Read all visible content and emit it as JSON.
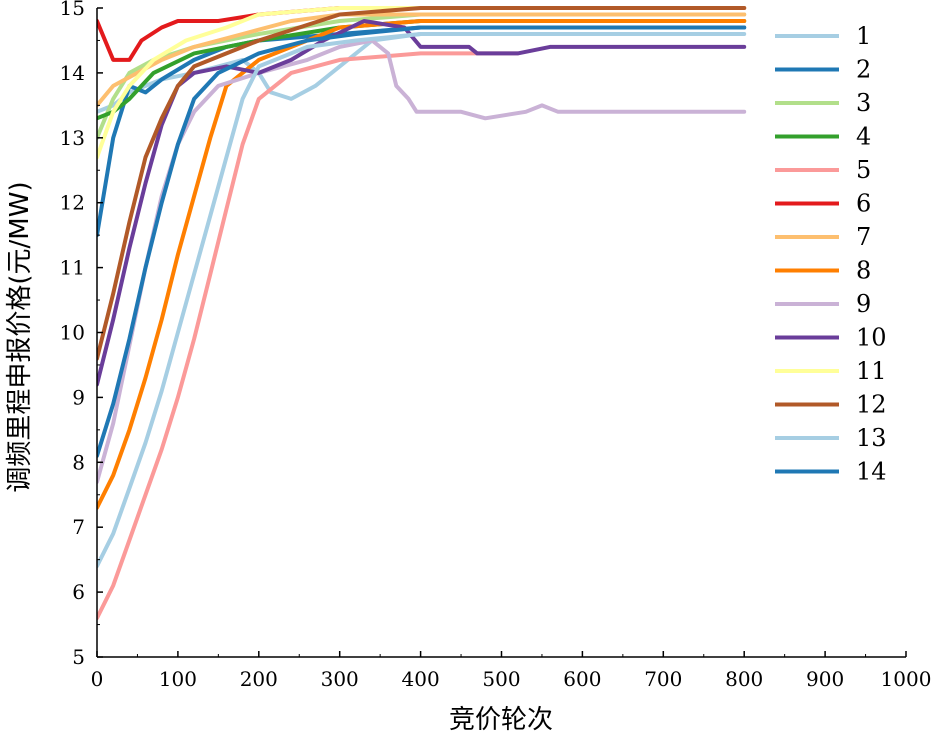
{
  "chart_data": {
    "type": "line",
    "title": "",
    "xlabel": "竞价轮次",
    "ylabel": "调频里程申报价格(元/MW)",
    "xlim": [
      0,
      1000
    ],
    "ylim": [
      5,
      15
    ],
    "xticks": [
      "0",
      "100",
      "200",
      "300",
      "400",
      "500",
      "600",
      "700",
      "800",
      "900",
      "1000"
    ],
    "yticks": [
      "5",
      "6",
      "7",
      "8",
      "9",
      "10",
      "11",
      "12",
      "13",
      "14",
      "15"
    ],
    "legend_position": "right",
    "grid": false,
    "series": [
      {
        "name": "1",
        "color": "#a6cee3",
        "points": [
          [
            0,
            13.4
          ],
          [
            20,
            13.5
          ],
          [
            40,
            13.7
          ],
          [
            80,
            13.9
          ],
          [
            120,
            14.0
          ],
          [
            180,
            14.2
          ],
          [
            200,
            14.0
          ],
          [
            215,
            13.7
          ],
          [
            240,
            13.6
          ],
          [
            270,
            13.8
          ],
          [
            300,
            14.1
          ],
          [
            340,
            14.5
          ],
          [
            400,
            14.6
          ],
          [
            520,
            14.6
          ]
        ]
      },
      {
        "name": "2",
        "color": "#1f78b4",
        "points": [
          [
            0,
            11.5
          ],
          [
            20,
            13.0
          ],
          [
            40,
            13.8
          ],
          [
            60,
            13.7
          ],
          [
            80,
            13.9
          ],
          [
            120,
            14.2
          ],
          [
            160,
            14.4
          ],
          [
            200,
            14.5
          ],
          [
            300,
            14.6
          ],
          [
            400,
            14.7
          ],
          [
            800,
            14.7
          ]
        ]
      },
      {
        "name": "3",
        "color": "#b2df8a",
        "points": [
          [
            0,
            13.0
          ],
          [
            20,
            13.6
          ],
          [
            40,
            14.0
          ],
          [
            70,
            14.2
          ],
          [
            120,
            14.4
          ],
          [
            200,
            14.6
          ],
          [
            300,
            14.8
          ],
          [
            400,
            14.9
          ],
          [
            800,
            14.9
          ]
        ]
      },
      {
        "name": "4",
        "color": "#33a02c",
        "points": [
          [
            0,
            13.3
          ],
          [
            20,
            13.4
          ],
          [
            40,
            13.6
          ],
          [
            70,
            14.0
          ],
          [
            120,
            14.3
          ],
          [
            200,
            14.5
          ],
          [
            250,
            14.6
          ],
          [
            300,
            14.7
          ],
          [
            400,
            14.8
          ],
          [
            800,
            14.8
          ]
        ]
      },
      {
        "name": "5",
        "color": "#fb9a99",
        "points": [
          [
            0,
            5.6
          ],
          [
            20,
            6.1
          ],
          [
            40,
            6.8
          ],
          [
            60,
            7.5
          ],
          [
            80,
            8.2
          ],
          [
            100,
            9.0
          ],
          [
            120,
            9.9
          ],
          [
            140,
            10.9
          ],
          [
            160,
            11.9
          ],
          [
            180,
            12.9
          ],
          [
            200,
            13.6
          ],
          [
            240,
            14.0
          ],
          [
            300,
            14.2
          ],
          [
            400,
            14.3
          ],
          [
            520,
            14.3
          ]
        ]
      },
      {
        "name": "6",
        "color": "#e31a1c",
        "points": [
          [
            0,
            14.8
          ],
          [
            10,
            14.5
          ],
          [
            20,
            14.2
          ],
          [
            40,
            14.2
          ],
          [
            55,
            14.5
          ],
          [
            80,
            14.7
          ],
          [
            100,
            14.8
          ],
          [
            150,
            14.8
          ],
          [
            200,
            14.9
          ],
          [
            300,
            15.0
          ],
          [
            800,
            15.0
          ]
        ]
      },
      {
        "name": "7",
        "color": "#fdbf6f",
        "points": [
          [
            0,
            13.5
          ],
          [
            20,
            13.8
          ],
          [
            50,
            14.0
          ],
          [
            80,
            14.2
          ],
          [
            120,
            14.4
          ],
          [
            180,
            14.6
          ],
          [
            240,
            14.8
          ],
          [
            300,
            14.9
          ],
          [
            800,
            14.9
          ]
        ]
      },
      {
        "name": "8",
        "color": "#ff7f00",
        "points": [
          [
            0,
            7.3
          ],
          [
            20,
            7.8
          ],
          [
            40,
            8.5
          ],
          [
            60,
            9.3
          ],
          [
            80,
            10.2
          ],
          [
            100,
            11.2
          ],
          [
            120,
            12.1
          ],
          [
            140,
            13.0
          ],
          [
            160,
            13.8
          ],
          [
            200,
            14.2
          ],
          [
            260,
            14.5
          ],
          [
            300,
            14.7
          ],
          [
            400,
            14.8
          ],
          [
            800,
            14.8
          ]
        ]
      },
      {
        "name": "9",
        "color": "#cab2d6",
        "points": [
          [
            0,
            7.7
          ],
          [
            20,
            8.6
          ],
          [
            40,
            9.8
          ],
          [
            60,
            11.0
          ],
          [
            80,
            12.1
          ],
          [
            100,
            12.9
          ],
          [
            120,
            13.4
          ],
          [
            150,
            13.8
          ],
          [
            200,
            14.0
          ],
          [
            260,
            14.2
          ],
          [
            300,
            14.4
          ],
          [
            340,
            14.5
          ],
          [
            360,
            14.3
          ],
          [
            370,
            13.8
          ],
          [
            385,
            13.6
          ],
          [
            395,
            13.4
          ],
          [
            450,
            13.4
          ],
          [
            480,
            13.3
          ],
          [
            530,
            13.4
          ],
          [
            550,
            13.5
          ],
          [
            570,
            13.4
          ],
          [
            620,
            13.4
          ],
          [
            800,
            13.4
          ]
        ]
      },
      {
        "name": "10",
        "color": "#6a3d9a",
        "points": [
          [
            0,
            9.2
          ],
          [
            20,
            10.2
          ],
          [
            40,
            11.3
          ],
          [
            60,
            12.3
          ],
          [
            80,
            13.2
          ],
          [
            100,
            13.8
          ],
          [
            120,
            14.0
          ],
          [
            160,
            14.1
          ],
          [
            200,
            14.0
          ],
          [
            240,
            14.2
          ],
          [
            280,
            14.5
          ],
          [
            330,
            14.8
          ],
          [
            380,
            14.7
          ],
          [
            400,
            14.4
          ],
          [
            460,
            14.4
          ],
          [
            470,
            14.3
          ],
          [
            520,
            14.3
          ],
          [
            560,
            14.4
          ],
          [
            800,
            14.4
          ]
        ]
      },
      {
        "name": "11",
        "color": "#ffff99",
        "points": [
          [
            0,
            12.7
          ],
          [
            20,
            13.4
          ],
          [
            40,
            13.8
          ],
          [
            70,
            14.2
          ],
          [
            110,
            14.5
          ],
          [
            160,
            14.7
          ],
          [
            200,
            14.9
          ],
          [
            300,
            15.0
          ],
          [
            800,
            15.0
          ]
        ]
      },
      {
        "name": "12",
        "color": "#b15928",
        "points": [
          [
            0,
            9.6
          ],
          [
            20,
            10.6
          ],
          [
            40,
            11.7
          ],
          [
            60,
            12.7
          ],
          [
            80,
            13.3
          ],
          [
            100,
            13.8
          ],
          [
            120,
            14.1
          ],
          [
            160,
            14.3
          ],
          [
            200,
            14.5
          ],
          [
            250,
            14.7
          ],
          [
            300,
            14.9
          ],
          [
            400,
            15.0
          ],
          [
            800,
            15.0
          ]
        ]
      },
      {
        "name": "13",
        "color": "#a6cee3",
        "points": [
          [
            0,
            6.4
          ],
          [
            20,
            6.9
          ],
          [
            40,
            7.6
          ],
          [
            60,
            8.3
          ],
          [
            80,
            9.1
          ],
          [
            100,
            10.0
          ],
          [
            120,
            10.9
          ],
          [
            140,
            11.8
          ],
          [
            160,
            12.7
          ],
          [
            180,
            13.6
          ],
          [
            200,
            14.1
          ],
          [
            260,
            14.4
          ],
          [
            320,
            14.5
          ],
          [
            400,
            14.6
          ],
          [
            800,
            14.6
          ]
        ]
      },
      {
        "name": "14",
        "color": "#1f78b4",
        "points": [
          [
            0,
            8.1
          ],
          [
            20,
            8.9
          ],
          [
            40,
            9.9
          ],
          [
            60,
            11.0
          ],
          [
            80,
            12.0
          ],
          [
            100,
            12.9
          ],
          [
            120,
            13.6
          ],
          [
            150,
            14.0
          ],
          [
            200,
            14.3
          ],
          [
            260,
            14.5
          ],
          [
            320,
            14.6
          ],
          [
            400,
            14.7
          ],
          [
            800,
            14.7
          ]
        ]
      }
    ]
  }
}
